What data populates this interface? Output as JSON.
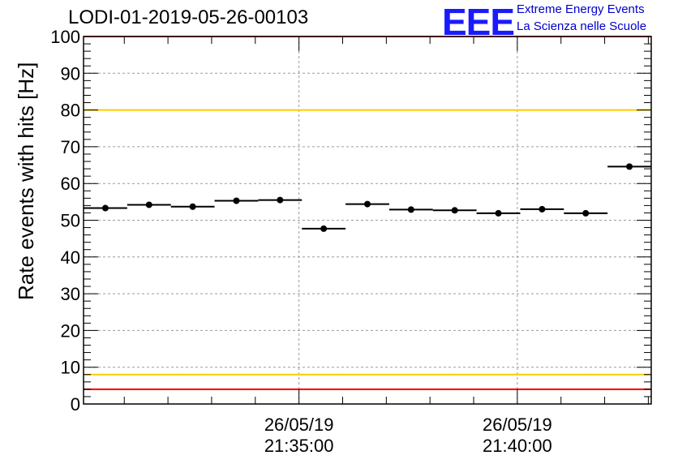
{
  "title": "LODI-01-2019-05-26-00103",
  "logo": {
    "text": "EEE",
    "line1": "Extreme Energy Events",
    "line2": "La Scienza nelle Scuole",
    "color": "#1a1aff"
  },
  "chart_data": {
    "type": "scatter",
    "title": "LODI-01-2019-05-26-00103",
    "ylabel": "Rate events with hits [Hz]",
    "xlabel": "",
    "ylim": [
      0,
      100
    ],
    "yticks": [
      0,
      10,
      20,
      30,
      40,
      50,
      60,
      70,
      80,
      90,
      100
    ],
    "xticks": [
      {
        "date": "26/05/19",
        "time": "21:35:00"
      },
      {
        "date": "26/05/19",
        "time": "21:40:00"
      }
    ],
    "x_range": [
      "21:30:04",
      "21:43:04"
    ],
    "bin_width_s": 60,
    "grid": true,
    "reference_lines": [
      {
        "value": 100,
        "color": "#ff0000"
      },
      {
        "value": 80,
        "color": "#ffcc00"
      },
      {
        "value": 8,
        "color": "#ffcc00"
      },
      {
        "value": 4,
        "color": "#ff0000"
      }
    ],
    "series": [
      {
        "points": [
          {
            "x": "21:30:34",
            "y": 53.3
          },
          {
            "x": "21:31:34",
            "y": 54.2
          },
          {
            "x": "21:32:34",
            "y": 53.7
          },
          {
            "x": "21:33:34",
            "y": 55.3
          },
          {
            "x": "21:34:34",
            "y": 55.5
          },
          {
            "x": "21:35:34",
            "y": 47.7
          },
          {
            "x": "21:36:34",
            "y": 54.4
          },
          {
            "x": "21:37:34",
            "y": 52.9
          },
          {
            "x": "21:38:34",
            "y": 52.7
          },
          {
            "x": "21:39:34",
            "y": 51.9
          },
          {
            "x": "21:40:34",
            "y": 53.0
          },
          {
            "x": "21:41:34",
            "y": 51.9
          },
          {
            "x": "21:42:34",
            "y": 64.6
          }
        ]
      }
    ]
  }
}
